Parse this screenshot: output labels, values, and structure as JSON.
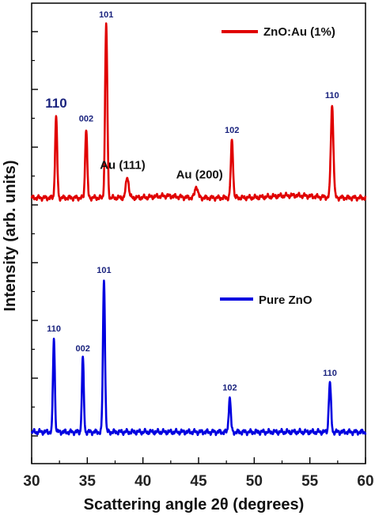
{
  "chart_data": {
    "type": "line",
    "xlabel": "Scattering angle 2θ (degrees)",
    "ylabel": "Intensity (arb. units)",
    "xlim": [
      30,
      60
    ],
    "x_ticks": [
      "30",
      "35",
      "40",
      "45",
      "50",
      "55",
      "60"
    ],
    "legend_placement": "right",
    "series": [
      {
        "name": "ZnO:Au (1%)",
        "color": "#e00000",
        "peaks": [
          {
            "x": 32.2,
            "height": 0.35,
            "width": 0.13
          },
          {
            "x": 34.9,
            "height": 0.3,
            "width": 0.13
          },
          {
            "x": 36.7,
            "height": 0.75,
            "width": 0.14
          },
          {
            "x": 38.6,
            "height": 0.09,
            "width": 0.18
          },
          {
            "x": 44.8,
            "height": 0.05,
            "width": 0.18
          },
          {
            "x": 48.0,
            "height": 0.25,
            "width": 0.14
          },
          {
            "x": 57.0,
            "height": 0.4,
            "width": 0.16
          }
        ],
        "peak_labels": [
          {
            "text": "110",
            "x": 32.2,
            "size": "large"
          },
          {
            "text": "002",
            "x": 34.9,
            "size": "small"
          },
          {
            "text": "101",
            "x": 36.7,
            "size": "small"
          },
          {
            "text": "102",
            "x": 48.0,
            "size": "small"
          },
          {
            "text": "110",
            "x": 57.0,
            "size": "small"
          }
        ]
      },
      {
        "name": "Pure ZnO",
        "color": "#0000e0",
        "peaks": [
          {
            "x": 32.0,
            "height": 0.38,
            "width": 0.12
          },
          {
            "x": 34.6,
            "height": 0.3,
            "width": 0.12
          },
          {
            "x": 36.5,
            "height": 0.62,
            "width": 0.13
          },
          {
            "x": 47.8,
            "height": 0.14,
            "width": 0.13
          },
          {
            "x": 56.8,
            "height": 0.2,
            "width": 0.14
          }
        ],
        "peak_labels": [
          {
            "text": "110",
            "x": 32.0
          },
          {
            "text": "002",
            "x": 34.6
          },
          {
            "text": "101",
            "x": 36.5
          },
          {
            "text": "102",
            "x": 47.8
          },
          {
            "text": "110",
            "x": 56.8
          }
        ]
      }
    ],
    "annotations": [
      {
        "text": "Au (111)",
        "x": 38.6
      },
      {
        "text": "Au (200)",
        "x": 44.8
      }
    ]
  }
}
